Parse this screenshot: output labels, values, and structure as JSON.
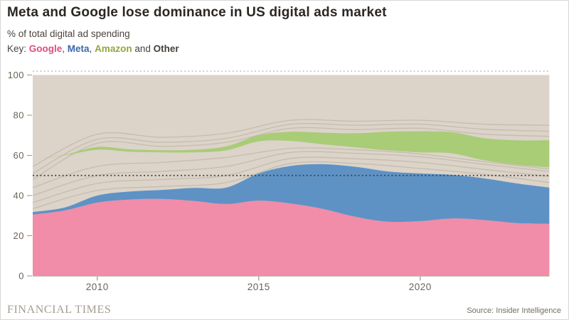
{
  "header": {
    "title": "Meta and Google lose dominance in US digital ads market",
    "subtitle": "% of total digital ad spending",
    "key": {
      "label": "Key: ",
      "google": "Google",
      "comma1": ", ",
      "meta": "Meta",
      "comma2": ", ",
      "amazon": "Amazon",
      "and": " and ",
      "other": "Other"
    }
  },
  "chart_data": {
    "type": "area",
    "stacked": true,
    "title": "Meta and Google lose dominance in US digital ads market",
    "ylabel": "% of total digital ad spending",
    "x": [
      2008,
      2009,
      2010,
      2011,
      2012,
      2013,
      2014,
      2015,
      2016,
      2017,
      2018,
      2019,
      2020,
      2021,
      2022,
      2023,
      2024
    ],
    "series": [
      {
        "name": "Google",
        "color": "#f18ca9",
        "values": [
          30.5,
          32.6,
          36.5,
          38,
          38.3,
          37.3,
          35.8,
          37.5,
          36,
          33.3,
          29.4,
          27,
          27.3,
          28.6,
          27.8,
          26.3,
          26
        ]
      },
      {
        "name": "Meta",
        "color": "#5e92c5",
        "values": [
          1.3,
          1.5,
          3.5,
          4,
          4.5,
          6.5,
          8.2,
          13.5,
          18.8,
          22.3,
          24.9,
          25,
          23.7,
          21.7,
          20.7,
          19.7,
          18
        ]
      },
      {
        "name": "Amazon",
        "color": "#a9cc77",
        "values": [
          0,
          0.3,
          1.4,
          1.2,
          1.1,
          1.3,
          2,
          3,
          4.6,
          5.8,
          7,
          9.3,
          10.5,
          10.5,
          11,
          12.2,
          13.5
        ],
        "band_bottom": [
          58,
          60,
          62.8,
          61.8,
          61.5,
          61.5,
          62.5,
          67,
          67.2,
          65.5,
          64,
          62.5,
          61.5,
          61,
          57.5,
          55.3,
          54
        ],
        "band_top": [
          58,
          60.3,
          64.2,
          63,
          62.6,
          62.8,
          64.5,
          70,
          71.8,
          71.3,
          71,
          71.8,
          72,
          71.5,
          68.5,
          67.5,
          67.5
        ]
      },
      {
        "name": "Other",
        "color": "#dcd3c9",
        "note": "background region up to 100"
      }
    ],
    "ylim": [
      0,
      100
    ],
    "yticks": [
      0,
      20,
      40,
      60,
      80,
      100
    ],
    "xticks": [
      2010,
      2015,
      2020
    ],
    "reference_line": 50,
    "top_reference_line": 100,
    "legend_position": "top-left-text-key",
    "grid": false,
    "background_streaks": {
      "x": [
        2008,
        2010,
        2012,
        2014,
        2016,
        2018,
        2020,
        2022,
        2024
      ],
      "lines": [
        [
          33.5,
          42.5,
          44.5,
          46.5,
          56,
          56,
          53.5,
          50.5,
          46.5
        ],
        [
          36.5,
          46,
          48,
          50,
          58.5,
          58.3,
          56.5,
          53,
          49.5
        ],
        [
          40,
          50,
          52,
          54.5,
          61.5,
          61,
          59.3,
          55.5,
          52
        ],
        [
          44,
          54.5,
          56.5,
          59,
          63.5,
          62.8,
          60.7,
          56.8,
          53.2
        ],
        [
          48,
          66,
          64.5,
          66.5,
          73.5,
          72.8,
          73.5,
          70.5,
          69.5
        ],
        [
          51,
          68,
          66.5,
          68.5,
          75.5,
          75,
          75.5,
          73,
          72
        ],
        [
          54.5,
          70.5,
          69,
          71,
          77.5,
          77,
          77.5,
          75.5,
          75
        ]
      ]
    }
  },
  "footer": {
    "brand": "FINANCIAL TIMES",
    "source": "Source: Insider Intelligence"
  },
  "colors": {
    "google_area": "#f18ca9",
    "meta_area": "#5e92c5",
    "amazon_area": "#a9cc77",
    "plot_bg": "#dcd3c9",
    "key_google": "#dd4f7e",
    "key_meta": "#3c67ad",
    "key_amazon": "#90a83e",
    "ref_line": "#44403a",
    "top_ref_line": "#c6bdb2",
    "streak": "#a4988a",
    "axis_text": "#6b6257",
    "tick": "#9a9187"
  }
}
